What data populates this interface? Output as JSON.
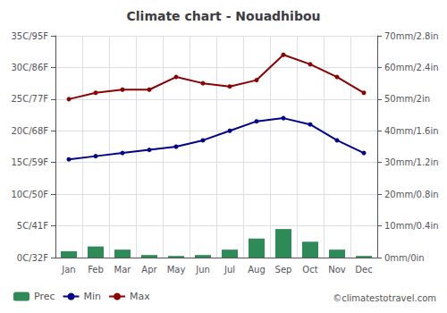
{
  "chart_data": {
    "type": "line",
    "title": "Climate chart - Nouadhibou",
    "categories": [
      "Jan",
      "Feb",
      "Mar",
      "Apr",
      "May",
      "Jun",
      "Jul",
      "Aug",
      "Sep",
      "Oct",
      "Nov",
      "Dec"
    ],
    "series": [
      {
        "name": "Prec",
        "type": "bar",
        "axis": "y2",
        "color": "#2E8B57",
        "values": [
          2.0,
          3.5,
          2.5,
          0.8,
          0.5,
          0.8,
          2.5,
          6.0,
          9.0,
          5.0,
          2.5,
          0.5
        ]
      },
      {
        "name": "Min",
        "type": "line",
        "color": "#00008B",
        "marker": "circle",
        "values": [
          15.5,
          16.0,
          16.5,
          17.0,
          17.5,
          18.5,
          20.0,
          21.5,
          22.0,
          21.0,
          18.5,
          16.5
        ]
      },
      {
        "name": "Max",
        "type": "line",
        "color": "#8B0000",
        "marker": "circle",
        "values": [
          25.0,
          26.0,
          26.5,
          26.5,
          28.5,
          27.5,
          27.0,
          28.0,
          32.0,
          30.5,
          28.5,
          26.0
        ]
      }
    ],
    "ylim": [
      0,
      35
    ],
    "yticks": [
      {
        "value": 0,
        "label": "0C/32F"
      },
      {
        "value": 5,
        "label": "5C/41F"
      },
      {
        "value": 10,
        "label": "10C/50F"
      },
      {
        "value": 15,
        "label": "15C/59F"
      },
      {
        "value": 20,
        "label": "20C/68F"
      },
      {
        "value": 25,
        "label": "25C/77F"
      },
      {
        "value": 30,
        "label": "30C/86F"
      },
      {
        "value": 35,
        "label": "35C/95F"
      }
    ],
    "y2lim": [
      0,
      70
    ],
    "y2ticks": [
      {
        "value": 0,
        "label": "0mm/0in"
      },
      {
        "value": 10,
        "label": "10mm/0.4in"
      },
      {
        "value": 20,
        "label": "20mm/0.8in"
      },
      {
        "value": 30,
        "label": "30mm/1.2in"
      },
      {
        "value": 40,
        "label": "40mm/1.6in"
      },
      {
        "value": 50,
        "label": "50mm/2in"
      },
      {
        "value": 60,
        "label": "60mm/2.4in"
      },
      {
        "value": 70,
        "label": "70mm/2.8in"
      }
    ],
    "grid": true,
    "legend": "lower left",
    "annotations": [
      "©climatestotravel.com"
    ]
  }
}
